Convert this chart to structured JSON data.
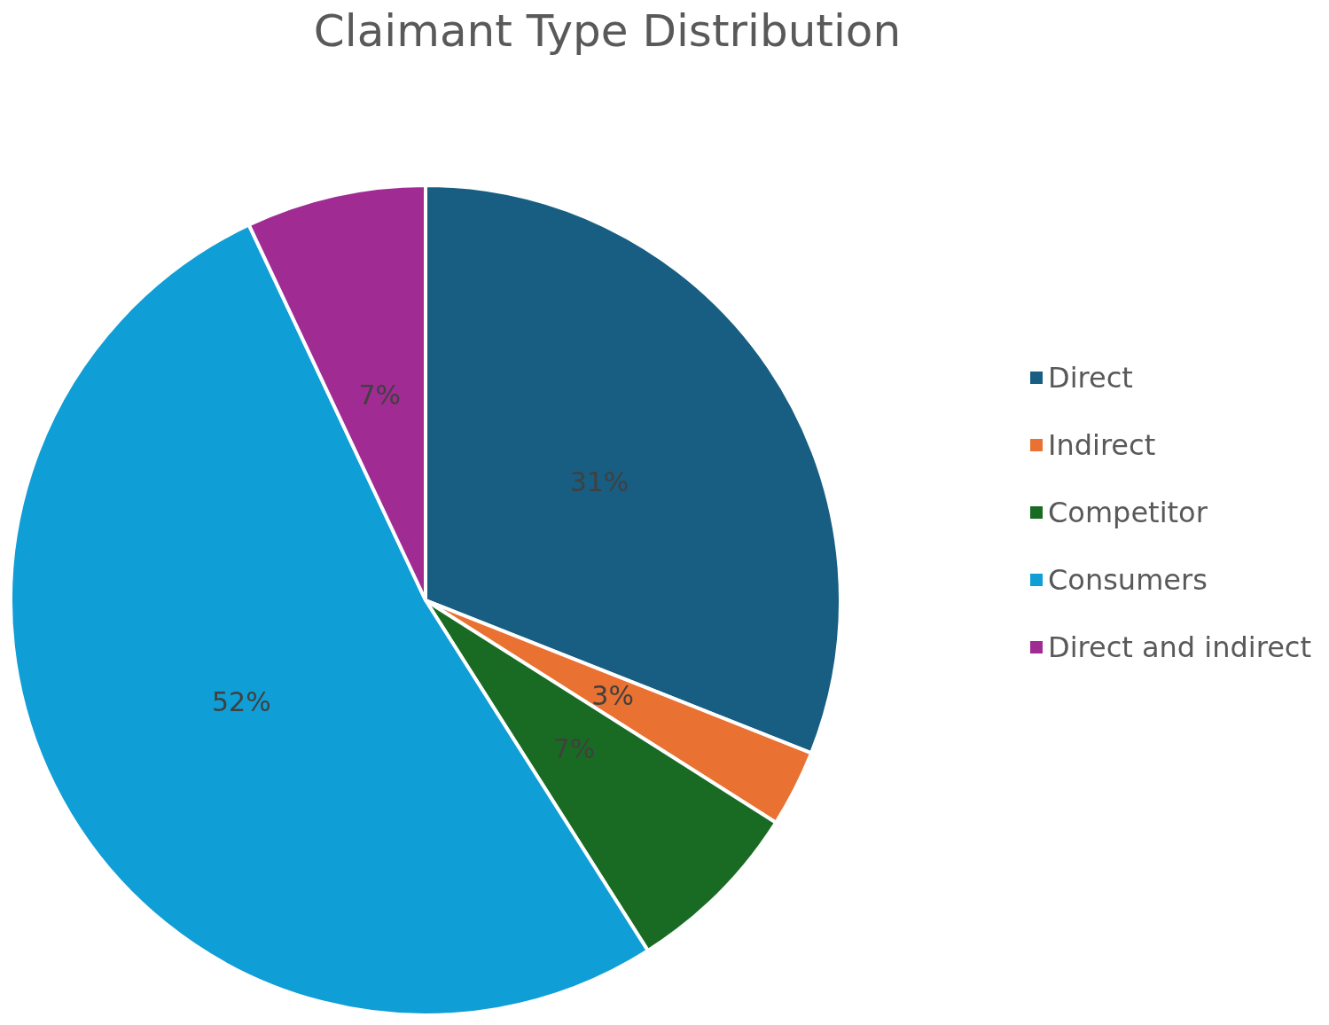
{
  "chart_data": {
    "type": "pie",
    "title": "Claimant Type Distribution",
    "categories": [
      "Direct",
      "Indirect",
      "Competitor",
      "Consumers",
      "Direct and indirect"
    ],
    "values": [
      31,
      3,
      7,
      52,
      7
    ],
    "value_labels": [
      "31%",
      "3%",
      "7%",
      "52%",
      "7%"
    ],
    "colors": [
      "#175e82",
      "#e97132",
      "#196b24",
      "#0f9ed5",
      "#a02b93"
    ],
    "legend": "right"
  }
}
